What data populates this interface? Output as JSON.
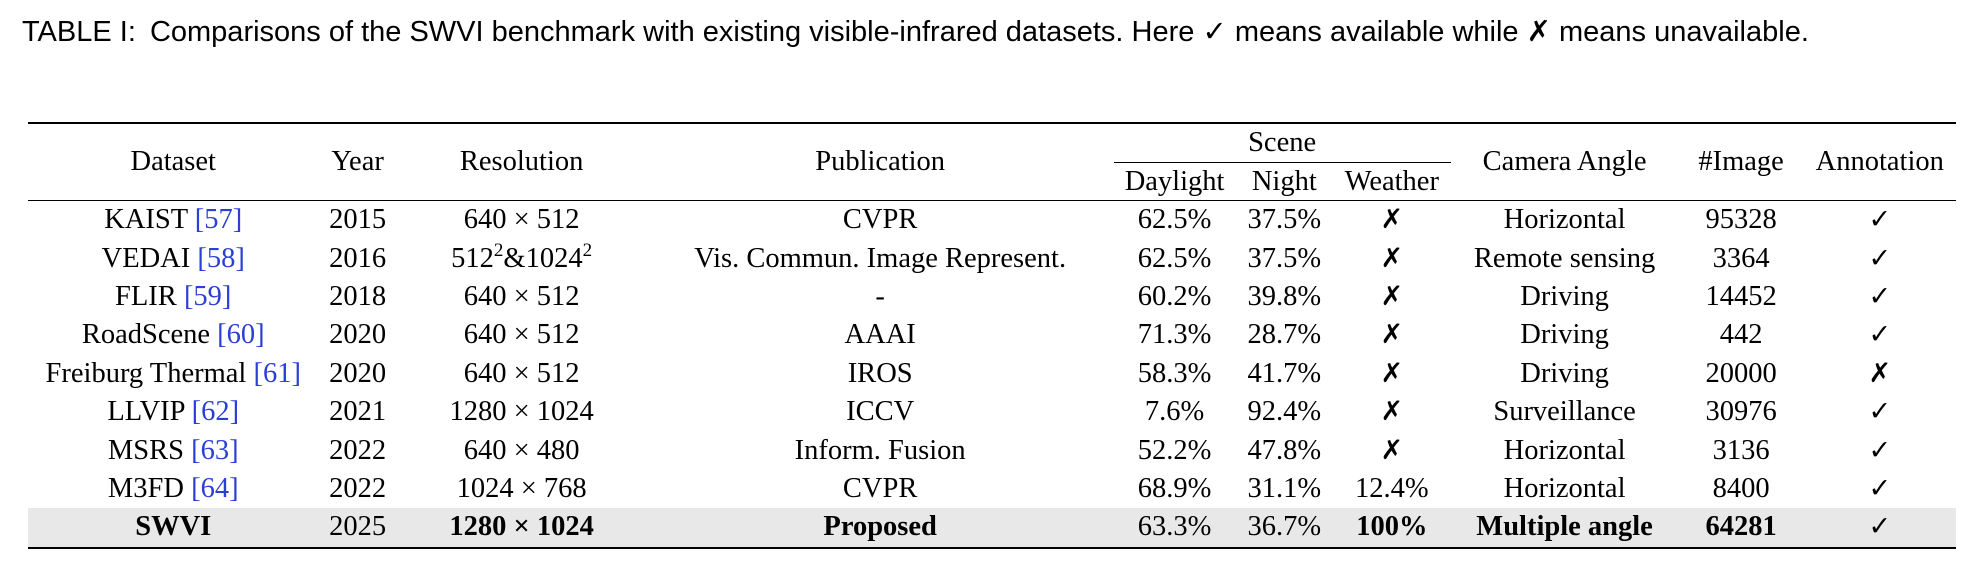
{
  "caption": {
    "tag": "TABLE I:",
    "text_before_check": "Comparisons of the SWVI benchmark with existing visible-infrared datasets. Here",
    "check_symbol": "✓",
    "text_middle": "means available while",
    "cross_symbol": "✗",
    "text_after": "means unavailable."
  },
  "table": {
    "headers": {
      "dataset": "Dataset",
      "year": "Year",
      "resolution": "Resolution",
      "publication": "Publication",
      "scene": "Scene",
      "daylight": "Daylight",
      "night": "Night",
      "weather": "Weather",
      "camera_angle": "Camera Angle",
      "image": "#Image",
      "annotation": "Annotation"
    },
    "rows": [
      {
        "name": "KAIST",
        "ref": "[57]",
        "year": "2015",
        "res_a": "640",
        "res_b": "512",
        "pub": "CVPR",
        "daylight": "62.5%",
        "night": "37.5%",
        "weather": "✗",
        "camera": "Horizontal",
        "images": "95328",
        "annotation": "✓"
      },
      {
        "name": "VEDAI",
        "ref": "[58]",
        "year": "2016",
        "res_special": {
          "a": "512",
          "a_exp": "2",
          "sep": "&",
          "b": "1024",
          "b_exp": "2"
        },
        "pub": "Vis. Commun. Image Represent.",
        "daylight": "62.5%",
        "night": "37.5%",
        "weather": "✗",
        "camera": "Remote sensing",
        "images": "3364",
        "annotation": "✓"
      },
      {
        "name": "FLIR",
        "ref": "[59]",
        "year": "2018",
        "res_a": "640",
        "res_b": "512",
        "pub": "-",
        "daylight": "60.2%",
        "night": "39.8%",
        "weather": "✗",
        "camera": "Driving",
        "images": "14452",
        "annotation": "✓"
      },
      {
        "name": "RoadScene",
        "ref": "[60]",
        "year": "2020",
        "res_a": "640",
        "res_b": "512",
        "pub": "AAAI",
        "daylight": "71.3%",
        "night": "28.7%",
        "weather": "✗",
        "camera": "Driving",
        "images": "442",
        "annotation": "✓"
      },
      {
        "name": "Freiburg Thermal",
        "ref": "[61]",
        "year": "2020",
        "res_a": "640",
        "res_b": "512",
        "pub": "IROS",
        "daylight": "58.3%",
        "night": "41.7%",
        "weather": "✗",
        "camera": "Driving",
        "images": "20000",
        "annotation": "✗"
      },
      {
        "name": "LLVIP",
        "ref": "[62]",
        "year": "2021",
        "res_a": "1280",
        "res_b": "1024",
        "pub": "ICCV",
        "daylight": "7.6%",
        "night": "92.4%",
        "weather": "✗",
        "camera": "Surveillance",
        "images": "30976",
        "annotation": "✓"
      },
      {
        "name": "MSRS",
        "ref": "[63]",
        "year": "2022",
        "res_a": "640",
        "res_b": "480",
        "pub": "Inform. Fusion",
        "daylight": "52.2%",
        "night": "47.8%",
        "weather": "✗",
        "camera": "Horizontal",
        "images": "3136",
        "annotation": "✓"
      },
      {
        "name": "M3FD",
        "ref": "[64]",
        "year": "2022",
        "res_a": "1024",
        "res_b": "768",
        "pub": "CVPR",
        "daylight": "68.9%",
        "night": "31.1%",
        "weather": "12.4%",
        "camera": "Horizontal",
        "images": "8400",
        "annotation": "✓"
      }
    ],
    "highlight_row": {
      "name": "SWVI",
      "year": "2025",
      "res_a": "1280",
      "res_b": "1024",
      "pub": "Proposed",
      "daylight": "63.3%",
      "night": "36.7%",
      "weather": "100%",
      "camera": "Multiple angle",
      "images": "64281",
      "annotation": "✓"
    },
    "times_symbol": "×",
    "colors": {
      "reference_link": "#2b3fd6",
      "highlight_background": "#e8e8e8"
    }
  }
}
